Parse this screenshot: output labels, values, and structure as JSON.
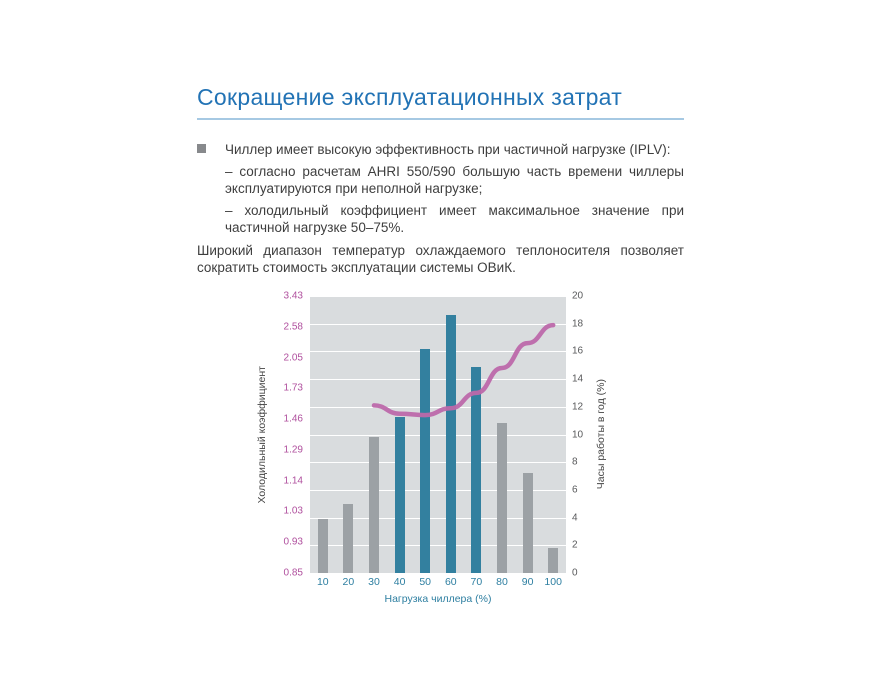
{
  "page": {
    "title": "Сокращение эксплуатационных затрат",
    "bullet": {
      "text": "Чиллер имеет высокую эффективность при частичной нагрузке (IPLV):",
      "sub_items": [
        "– согласно расчетам AHRI 550/590 большую часть времени чиллеры эксплуатируются при неполной нагрузке;",
        "– холодильный коэффициент имеет максимальное значение при частичной нагрузке 50–75%."
      ]
    },
    "paragraph": "Широкий диапазон температур охлаждаемого теплоносителя позволяет сократить стоимость эксплуатации системы ОВиК."
  },
  "chart_data": {
    "type": "bar",
    "title": "",
    "xlabel": "Нагрузка чиллера (%)",
    "ylabel_left": "Холодильный коэффициент",
    "ylabel_right": "Часы работы в год (%)",
    "categories": [
      "10",
      "20",
      "30",
      "40",
      "50",
      "60",
      "70",
      "80",
      "90",
      "100"
    ],
    "left_axis_ticks": [
      "3.43",
      "2.58",
      "2.05",
      "1.73",
      "1.46",
      "1.29",
      "1.14",
      "1.03",
      "0.93",
      "0.85"
    ],
    "right_axis_ticks": [
      "20",
      "18",
      "16",
      "14",
      "12",
      "10",
      "8",
      "6",
      "4",
      "2",
      "0"
    ],
    "right_axis_range": [
      0,
      20
    ],
    "grid": true,
    "legend": "none",
    "series": [
      {
        "name": "Часы работы в год (%)",
        "type": "bar",
        "values": [
          3.9,
          5.0,
          9.8,
          11.3,
          16.2,
          18.6,
          14.9,
          10.8,
          7.2,
          1.8
        ],
        "highlight_categories": [
          "40",
          "50",
          "60",
          "70"
        ],
        "bar_color_default": "#9ca1a5",
        "bar_color_highlight": "#33809f"
      },
      {
        "name": "Холодильный коэффициент",
        "type": "line",
        "x": [
          "30",
          "40",
          "50",
          "60",
          "70",
          "80",
          "90",
          "100"
        ],
        "values": [
          12.1,
          11.5,
          11.4,
          11.9,
          13.0,
          14.8,
          16.6,
          17.9
        ],
        "color": "#bd68aa"
      }
    ],
    "colors": {
      "plot_bg": "#d9dcde",
      "grid": "#ffffff",
      "left_tick_color": "#b0509e",
      "x_tick_color": "#2e7fa1",
      "right_tick_color": "#58595b"
    }
  },
  "theme": {
    "title_color": "#2273b5",
    "rule_color": "#a6c9e3",
    "text_color": "#3e3e3e",
    "bullet_color": "#87898c"
  }
}
